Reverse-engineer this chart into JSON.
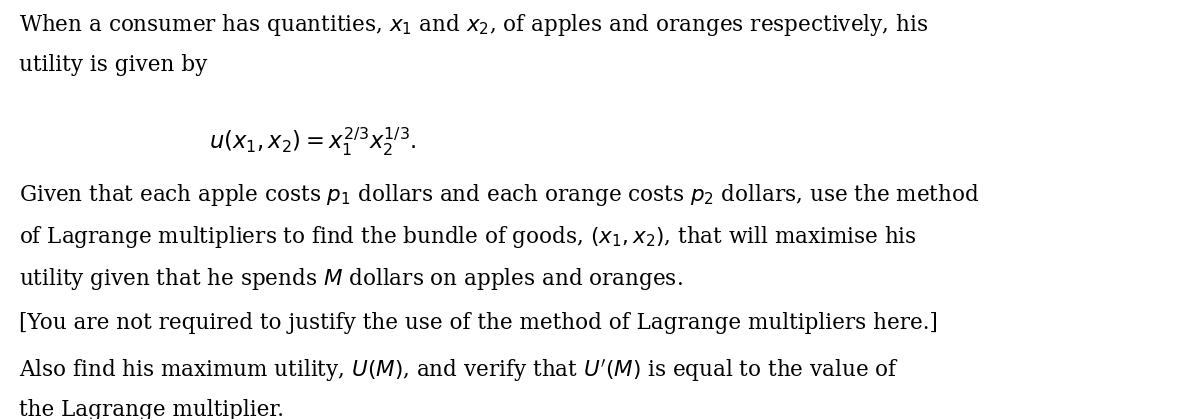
{
  "background_color": "#ffffff",
  "figsize": [
    12.0,
    4.19
  ],
  "dpi": 100,
  "text_color": "#000000",
  "font_size": 15.5,
  "line1": "When a consumer has quantities, $x_1$ and $x_2$, of apples and oranges respectively, his",
  "line2": "utility is given by",
  "equation": "$u(x_1, x_2) = x_1^{2/3} x_2^{1/3}.$",
  "line3": "Given that each apple costs $p_1$ dollars and each orange costs $p_2$ dollars, use the method",
  "line4": "of Lagrange multipliers to find the bundle of goods, $(x_1, x_2)$, that will maximise his",
  "line5": "utility given that he spends $M$ dollars on apples and oranges.",
  "line6": "[You are not required to justify the use of the method of Lagrange multipliers here.]",
  "line7": "Also find his maximum utility, $U(M)$, and verify that $U'(M)$ is equal to the value of",
  "line8": "the Lagrange multiplier."
}
